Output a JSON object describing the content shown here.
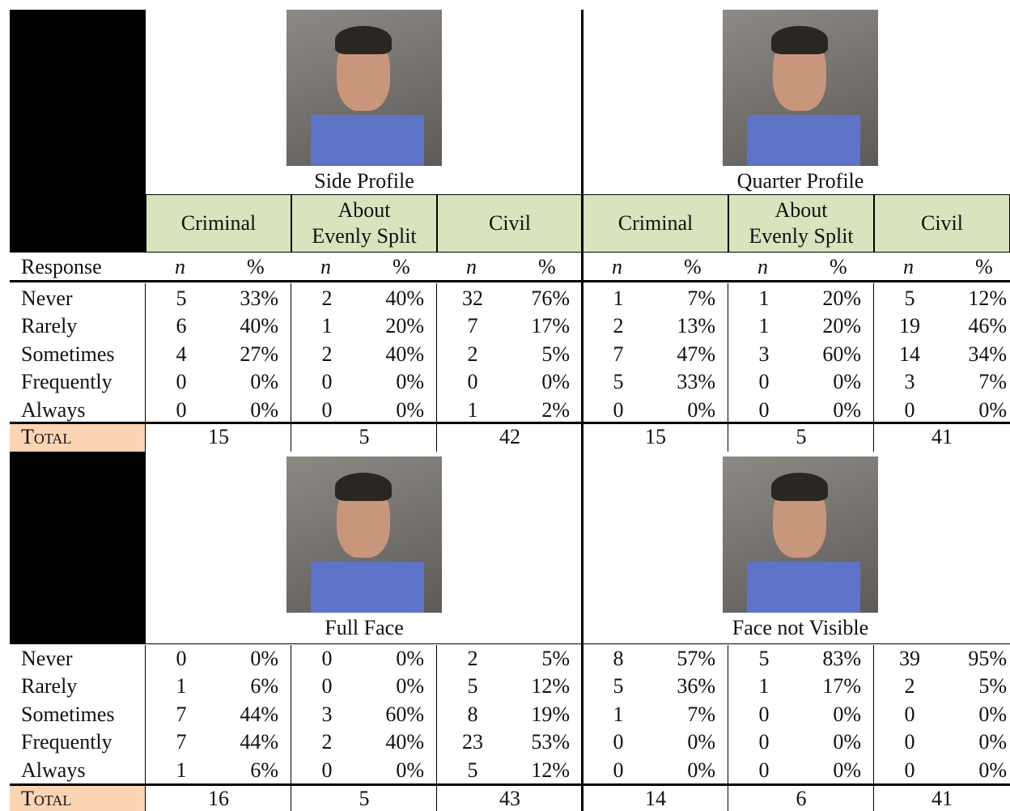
{
  "header": {
    "response_label": "Response",
    "n_label": "n",
    "pct_label": "%",
    "groups": [
      "Criminal",
      "About Evenly Split",
      "Civil"
    ],
    "total_label": "Total"
  },
  "responses": [
    "Never",
    "Rarely",
    "Sometimes",
    "Frequently",
    "Always"
  ],
  "panels": [
    {
      "title": "Side Profile",
      "rows": [
        [
          5,
          "33%",
          2,
          "40%",
          32,
          "76%"
        ],
        [
          6,
          "40%",
          1,
          "20%",
          7,
          "17%"
        ],
        [
          4,
          "27%",
          2,
          "40%",
          2,
          "5%"
        ],
        [
          0,
          "0%",
          0,
          "0%",
          0,
          "0%"
        ],
        [
          0,
          "0%",
          0,
          "0%",
          1,
          "2%"
        ]
      ],
      "totals": [
        15,
        5,
        42
      ]
    },
    {
      "title": "Quarter Profile",
      "rows": [
        [
          1,
          "7%",
          1,
          "20%",
          5,
          "12%"
        ],
        [
          2,
          "13%",
          1,
          "20%",
          19,
          "46%"
        ],
        [
          7,
          "47%",
          3,
          "60%",
          14,
          "34%"
        ],
        [
          5,
          "33%",
          0,
          "0%",
          3,
          "7%"
        ],
        [
          0,
          "0%",
          0,
          "0%",
          0,
          "0%"
        ]
      ],
      "totals": [
        15,
        5,
        41
      ]
    },
    {
      "title": "Full Face",
      "rows": [
        [
          0,
          "0%",
          0,
          "0%",
          2,
          "5%"
        ],
        [
          1,
          "6%",
          0,
          "0%",
          5,
          "12%"
        ],
        [
          7,
          "44%",
          3,
          "60%",
          8,
          "19%"
        ],
        [
          7,
          "44%",
          2,
          "40%",
          23,
          "53%"
        ],
        [
          1,
          "6%",
          0,
          "0%",
          5,
          "12%"
        ]
      ],
      "totals": [
        16,
        5,
        43
      ]
    },
    {
      "title": "Face not Visible",
      "rows": [
        [
          8,
          "57%",
          5,
          "83%",
          39,
          "95%"
        ],
        [
          5,
          "36%",
          1,
          "17%",
          2,
          "5%"
        ],
        [
          1,
          "7%",
          0,
          "0%",
          0,
          "0%"
        ],
        [
          0,
          "0%",
          0,
          "0%",
          0,
          "0%"
        ],
        [
          0,
          "0%",
          0,
          "0%",
          0,
          "0%"
        ]
      ],
      "totals": [
        14,
        6,
        41
      ]
    }
  ]
}
